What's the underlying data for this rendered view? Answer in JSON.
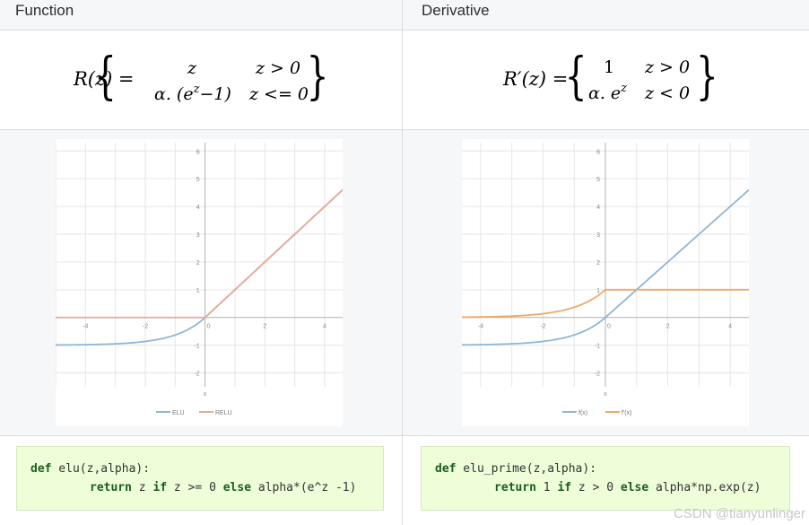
{
  "columns": [
    {
      "header": "Function",
      "formula": {
        "lhs": "R(z) =",
        "row1_expr": "z",
        "row1_cond": "z > 0",
        "row2_expr_prefix": "α. (e",
        "row2_expr_exp": "z",
        "row2_expr_suffix": "−1)",
        "row2_cond": "z <= 0"
      },
      "code": {
        "line1_kw": "def",
        "line1_rest": " elu(z,alpha):",
        "line2_kw1": "return",
        "line2_a": " z ",
        "line2_kw2": "if",
        "line2_b": " z >= 0 ",
        "line2_kw3": "else",
        "line2_c": " alpha*(e^z -1)"
      },
      "chart_data": {
        "type": "line",
        "xlabel": "x",
        "xlim": [
          -5,
          4.6
        ],
        "ylim": [
          -2.5,
          6.3
        ],
        "x_ticks": [
          "-4",
          "-2",
          "0",
          "2",
          "4"
        ],
        "y_ticks": [
          "-2",
          "-1",
          "1",
          "2",
          "3",
          "4",
          "5",
          "6"
        ],
        "grid": true,
        "legend_placement": "bottom",
        "series": [
          {
            "name": "ELU",
            "color": "#8fb6d8",
            "function": "elu",
            "alpha": 1
          },
          {
            "name": "RELU",
            "color": "#e8a99a",
            "function": "relu"
          }
        ]
      }
    },
    {
      "header": "Derivative",
      "formula": {
        "lhs": "R′(z) =",
        "row1_expr": "1",
        "row1_cond": "z > 0",
        "row2_expr_prefix": "α. e",
        "row2_expr_exp": "z",
        "row2_expr_suffix": "",
        "row2_cond": "z < 0"
      },
      "code": {
        "line1_kw": "def",
        "line1_rest": " elu_prime(z,alpha):",
        "line2_kw1": "return",
        "line2_a": " 1 ",
        "line2_kw2": "if",
        "line2_b": " z > 0 ",
        "line2_kw3": "else",
        "line2_c": " alpha*np.exp(z)"
      },
      "chart_data": {
        "type": "line",
        "xlabel": "x",
        "xlim": [
          -4.6,
          4.6
        ],
        "ylim": [
          -2.5,
          6.3
        ],
        "x_ticks": [
          "-4",
          "-2",
          "0",
          "2",
          "4"
        ],
        "y_ticks": [
          "-2",
          "-1",
          "1",
          "2",
          "3",
          "4",
          "5",
          "6"
        ],
        "grid": true,
        "legend_placement": "bottom",
        "series": [
          {
            "name": "f(x)",
            "color": "#8fb6d8",
            "function": "elu",
            "alpha": 1
          },
          {
            "name": "f'(x)",
            "color": "#f0a868",
            "function": "elu_prime",
            "alpha": 1
          }
        ]
      }
    }
  ],
  "watermark": "CSDN @tianyunlinger"
}
